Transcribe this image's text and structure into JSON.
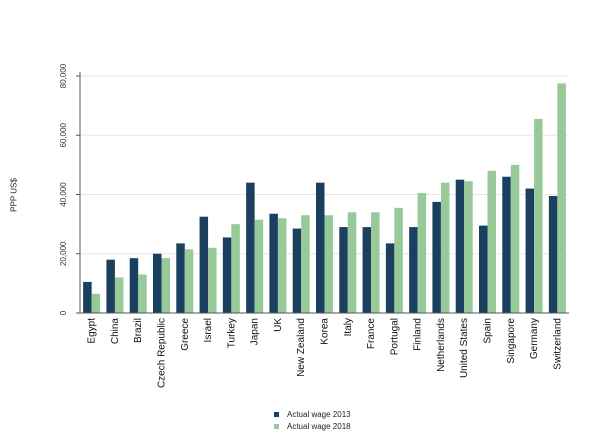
{
  "chart_data": {
    "type": "bar",
    "ylabel": "PPP US$",
    "ylim": [
      0,
      80000
    ],
    "yticks": [
      "0",
      "20,000",
      "40,000",
      "60,000",
      "80,000"
    ],
    "ytick_values": [
      0,
      20000,
      40000,
      60000,
      80000
    ],
    "grid": true,
    "legend_position": "bottom",
    "categories": [
      "Egypt",
      "China",
      "Brazil",
      "Czech Republic",
      "Greece",
      "Israel",
      "Turkey",
      "Japan",
      "UK",
      "New Zealand",
      "Korea",
      "Italy",
      "France",
      "Portugal",
      "Finland",
      "Netherlands",
      "United States",
      "Spain",
      "Singapore",
      "Germany",
      "Switzerland"
    ],
    "series": [
      {
        "name": "Actual wage 2013",
        "color": "#1b3f5e",
        "values": [
          10500,
          18000,
          18500,
          20000,
          23500,
          32500,
          25500,
          44000,
          33500,
          28500,
          44000,
          29000,
          29000,
          23500,
          29000,
          37500,
          45000,
          29500,
          46000,
          42000,
          39500
        ]
      },
      {
        "name": "Actual wage 2018",
        "color": "#97c999",
        "values": [
          6500,
          12000,
          13000,
          18500,
          21500,
          22000,
          30000,
          31500,
          32000,
          33000,
          33000,
          34000,
          34000,
          35500,
          40500,
          44000,
          44500,
          48000,
          50000,
          65500,
          77500
        ]
      }
    ]
  }
}
